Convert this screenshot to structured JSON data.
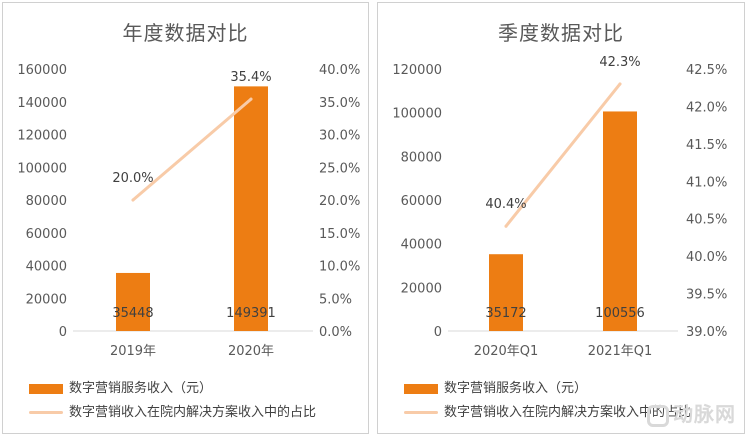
{
  "colors": {
    "bar": "#ed7d13",
    "line": "#f8cba8",
    "axis_text": "#595959"
  },
  "watermark": "动脉网",
  "chart_data": [
    {
      "type": "bar",
      "title": "年度数据对比",
      "categories": [
        "2019年",
        "2020年"
      ],
      "series": [
        {
          "name": "数字营销服务收入（元）",
          "type": "bar",
          "axis": "left",
          "values": [
            35448,
            149391
          ],
          "labels": [
            "35448",
            "149391"
          ]
        },
        {
          "name": "数字营销收入在院内解决方案收入中的占比",
          "type": "line",
          "axis": "right",
          "values": [
            20.0,
            35.4
          ],
          "labels": [
            "20.0%",
            "35.4%"
          ]
        }
      ],
      "y_left": {
        "ylim": [
          0,
          160000
        ],
        "ticks": [
          "0",
          "20000",
          "40000",
          "60000",
          "80000",
          "100000",
          "120000",
          "140000",
          "160000"
        ]
      },
      "y_right": {
        "ylim": [
          0,
          40
        ],
        "ticks": [
          "0.0%",
          "5.0%",
          "10.0%",
          "15.0%",
          "20.0%",
          "25.0%",
          "30.0%",
          "35.0%",
          "40.0%"
        ]
      },
      "grid": false,
      "legend": "bottom"
    },
    {
      "type": "bar",
      "title": "季度数据对比",
      "categories": [
        "2020年Q1",
        "2021年Q1"
      ],
      "series": [
        {
          "name": "数字营销服务收入（元）",
          "type": "bar",
          "axis": "left",
          "values": [
            35172,
            100556
          ],
          "labels": [
            "35172",
            "100556"
          ]
        },
        {
          "name": "数字营销收入在院内解决方案收入中的占比",
          "type": "line",
          "axis": "right",
          "values": [
            40.4,
            42.3
          ],
          "labels": [
            "40.4%",
            "42.3%"
          ]
        }
      ],
      "y_left": {
        "ylim": [
          0,
          120000
        ],
        "ticks": [
          "0",
          "20000",
          "40000",
          "60000",
          "80000",
          "100000",
          "120000"
        ]
      },
      "y_right": {
        "ylim": [
          39,
          42.5
        ],
        "ticks": [
          "39.0%",
          "39.5%",
          "40.0%",
          "40.5%",
          "41.0%",
          "41.5%",
          "42.0%",
          "42.5%"
        ]
      },
      "grid": false,
      "legend": "bottom"
    }
  ]
}
